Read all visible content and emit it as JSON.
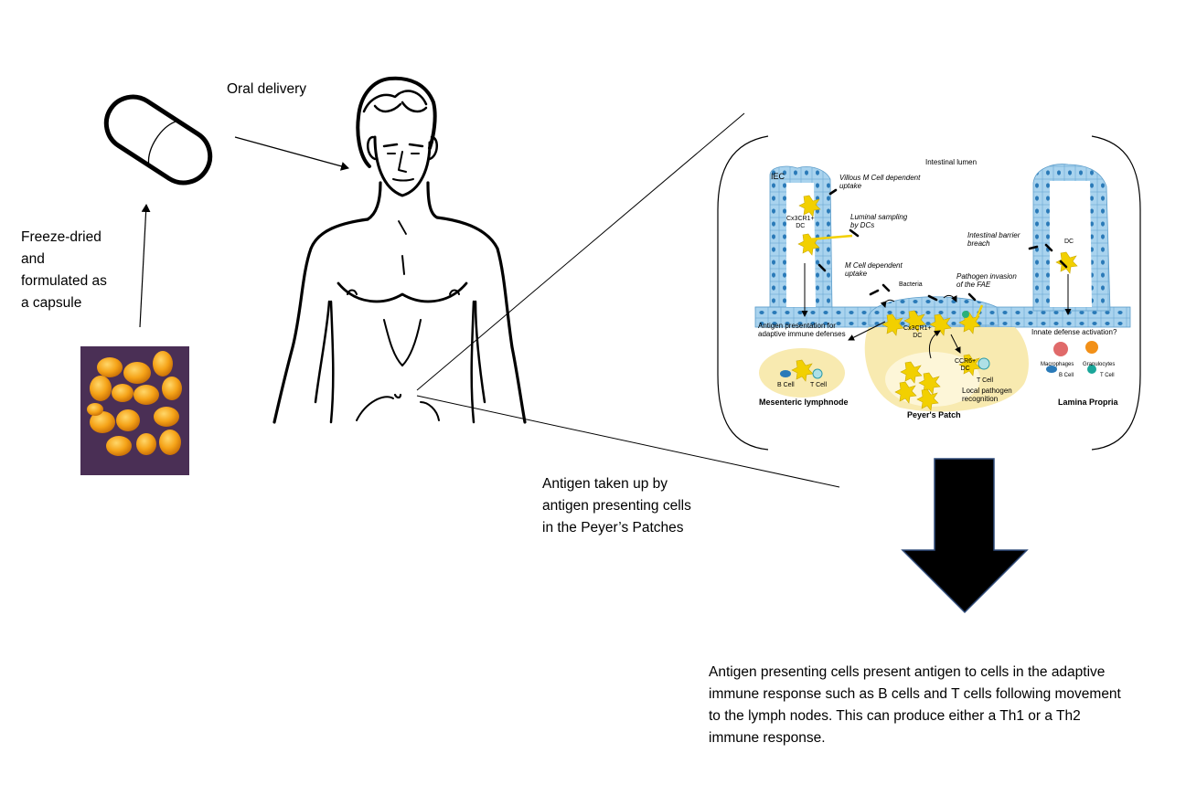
{
  "labels": {
    "oral_delivery": "Oral delivery",
    "freeze_dried": [
      "Freeze-dried",
      "and",
      "formulated as",
      "a capsule"
    ],
    "antigen_uptake": [
      "Antigen taken up by",
      "antigen presenting cells",
      "in the Peyer’s Patches"
    ],
    "adaptive_response": [
      "Antigen presenting cells present antigen to cells in the adaptive",
      "immune response such as B cells and T cells following movement",
      "to the lymph nodes. This can produce either a Th1 or a Th2",
      "immune response."
    ]
  },
  "inset": {
    "intestinal_lumen": "Intestinal lumen",
    "iec": "IEC",
    "villous_m_cell": [
      "Villous M Cell dependent",
      "uptake"
    ],
    "cx3cr1_dc_left": [
      "Cx3CR1+",
      "DC"
    ],
    "luminal_sampling": [
      "Luminal sampling",
      "by DCs"
    ],
    "m_cell_uptake": [
      "M Cell dependent",
      "uptake"
    ],
    "intestinal_barrier": [
      "Intestinal barrier",
      "breach"
    ],
    "dc": "DC",
    "bacteria": "Bacteria",
    "pathogen_invasion": [
      "Pathogen invasion",
      "of the FAE"
    ],
    "antigen_presentation": [
      "Antigen presentation for",
      "adaptive immune defenses"
    ],
    "cx3cr1_dc_center": [
      "Cx3CR1+",
      "DC"
    ],
    "innate_activation": "Innate defense activation?",
    "ccr6_dc": [
      "CCR6+",
      "DC"
    ],
    "t_cell_center": "T Cell",
    "b_cell_left": "B Cell",
    "t_cell_left": "T Cell",
    "macrophages": "Macrophages",
    "granulocytes": "Granulocytes",
    "b_cell_right": "B Cell",
    "t_cell_right": "T Cell",
    "local_pathogen": [
      "Local pathogen",
      "recognition"
    ],
    "mesenteric": "Mesenteric lymphnode",
    "peyers_patch": "Peyer's Patch",
    "lamina_propria": "Lamina Propria"
  },
  "colors": {
    "epithelium": "#a9d3ee",
    "nucleus": "#2a7ab8",
    "patch_fill": "#f8eab0",
    "dc_yellow": "#f2d000",
    "bacteria_bg": "#4a2f55",
    "bacteria_orange": "#f5a318"
  }
}
